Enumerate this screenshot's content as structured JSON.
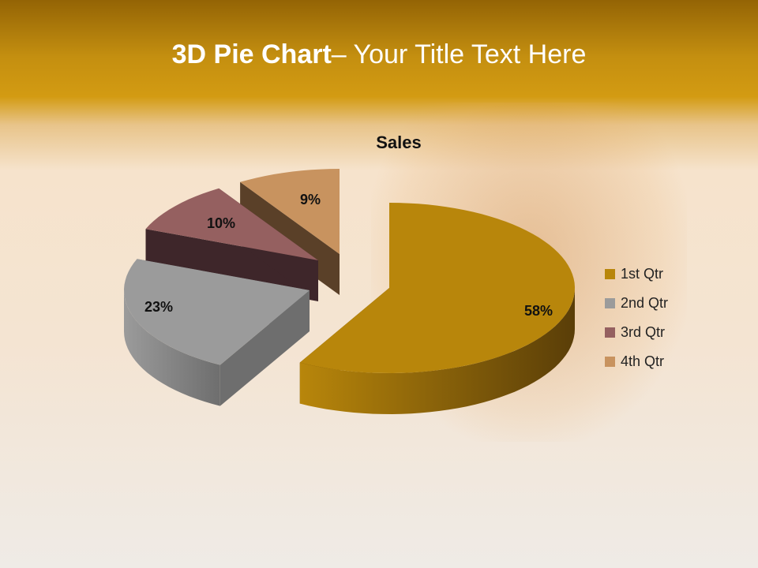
{
  "slide": {
    "title_bold": "3D Pie Chart",
    "title_rest": "– Your Title Text Here"
  },
  "chart_data": {
    "type": "pie",
    "style": "3d-exploded",
    "title": "Sales",
    "categories": [
      "1st Qtr",
      "2nd Qtr",
      "3rd Qtr",
      "4th Qtr"
    ],
    "values": [
      58,
      23,
      10,
      9
    ],
    "labels": [
      "58%",
      "23%",
      "10%",
      "9%"
    ],
    "colors": [
      "#b8860b",
      "#9b9b9b",
      "#956060",
      "#c8935f"
    ],
    "side_colors": [
      "#5a3e08",
      "#6e6e6e",
      "#3e262a",
      "#5a4028"
    ],
    "legend": "right"
  }
}
